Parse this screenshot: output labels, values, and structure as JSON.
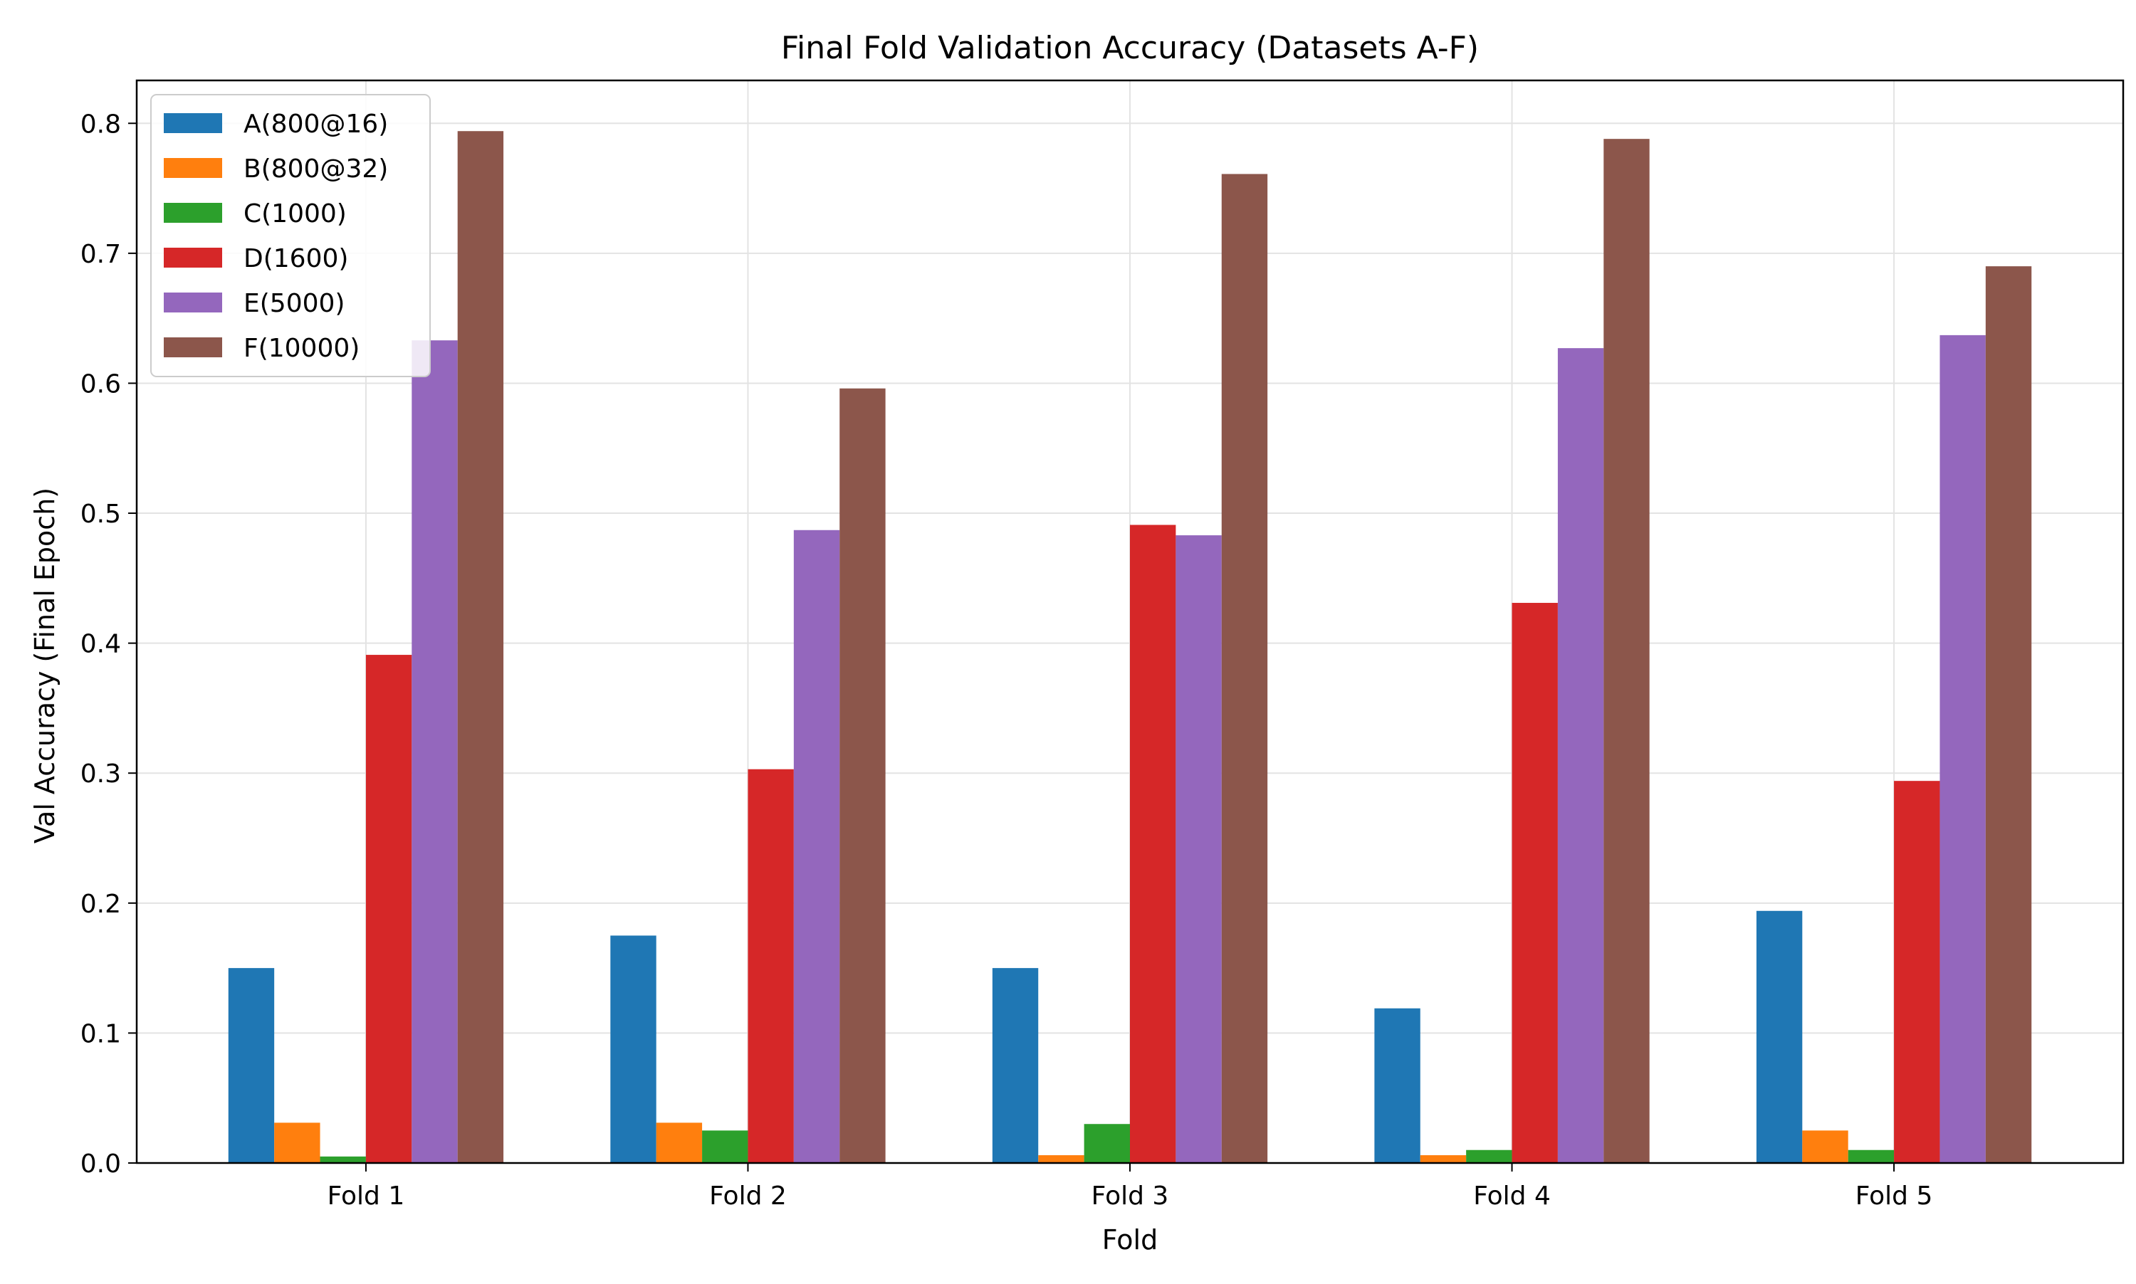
{
  "chart_data": {
    "type": "bar",
    "title": "Final Fold Validation Accuracy (Datasets A-F)",
    "xlabel": "Fold",
    "ylabel": "Val Accuracy (Final Epoch)",
    "categories": [
      "Fold 1",
      "Fold 2",
      "Fold 3",
      "Fold 4",
      "Fold 5"
    ],
    "ylim": [
      0,
      0.833
    ],
    "yticks": [
      "0.0",
      "0.1",
      "0.2",
      "0.3",
      "0.4",
      "0.5",
      "0.6",
      "0.7",
      "0.8"
    ],
    "grid": true,
    "legend_position": "top-left",
    "series": [
      {
        "name": "A(800@16)",
        "color": "#1f77b4",
        "values": [
          0.15,
          0.175,
          0.15,
          0.119,
          0.194
        ]
      },
      {
        "name": "B(800@32)",
        "color": "#ff7f0e",
        "values": [
          0.031,
          0.031,
          0.006,
          0.006,
          0.025
        ]
      },
      {
        "name": "C(1000)",
        "color": "#2ca02c",
        "values": [
          0.005,
          0.025,
          0.03,
          0.01,
          0.01
        ]
      },
      {
        "name": "D(1600)",
        "color": "#d62728",
        "values": [
          0.391,
          0.303,
          0.491,
          0.431,
          0.294
        ]
      },
      {
        "name": "E(5000)",
        "color": "#9467bd",
        "values": [
          0.633,
          0.487,
          0.483,
          0.627,
          0.637
        ]
      },
      {
        "name": "F(10000)",
        "color": "#8c564b",
        "values": [
          0.794,
          0.596,
          0.761,
          0.788,
          0.69
        ]
      }
    ]
  }
}
